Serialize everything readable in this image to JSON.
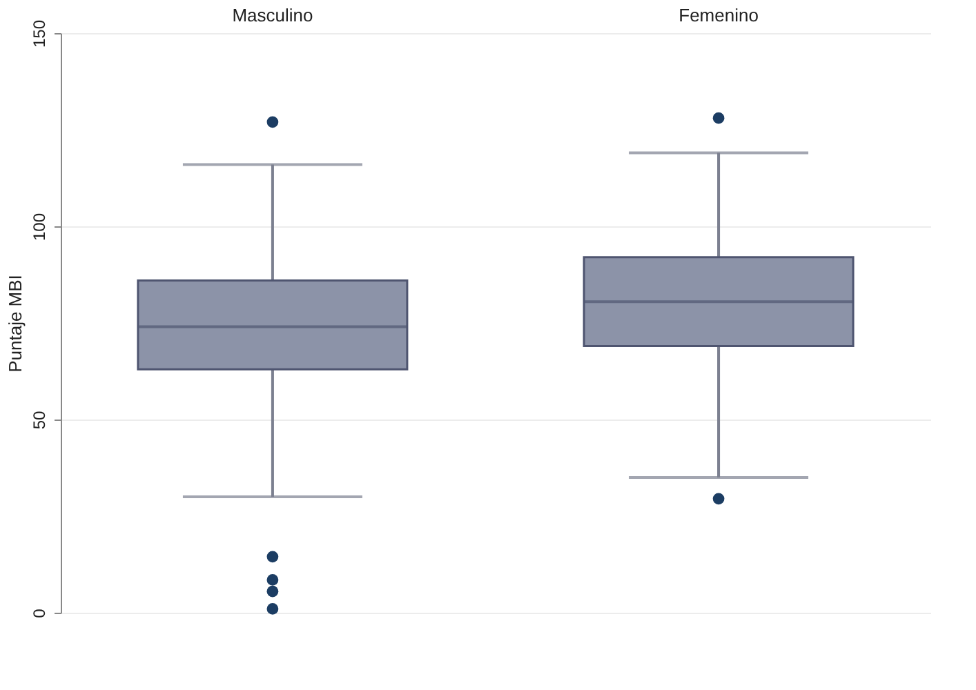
{
  "chart_data": {
    "type": "box",
    "ylabel": "Puntaje MBI",
    "categories": [
      "Masculino",
      "Femenino"
    ],
    "color": "#8c93a8",
    "boxes": [
      {
        "low": 30,
        "q1": 63,
        "median": 74,
        "q3": 86,
        "high": 116,
        "outliers": [
          127,
          14.5,
          8.5,
          5.5,
          1
        ]
      },
      {
        "low": 35,
        "q1": 69,
        "median": 80.5,
        "q3": 92,
        "high": 119,
        "outliers": [
          128,
          29.5
        ]
      }
    ],
    "ylim": [
      0,
      150
    ],
    "yticks": [
      0,
      50,
      100,
      150
    ],
    "grid": "y"
  }
}
